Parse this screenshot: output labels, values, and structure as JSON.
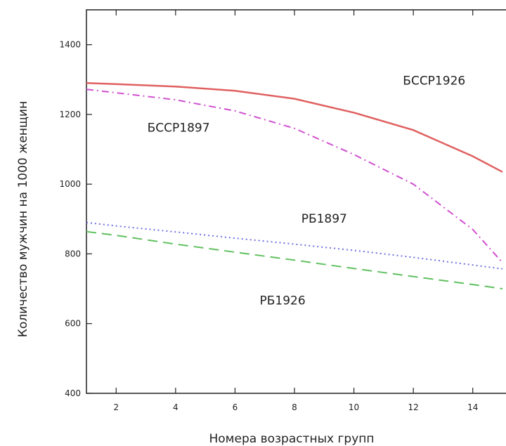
{
  "chart_data": {
    "type": "line",
    "title": "",
    "xlabel": "Номера возрастных групп",
    "ylabel": "Количество мужчин на 1000 женщин",
    "xlim": [
      1,
      15
    ],
    "ylim": [
      400,
      1500
    ],
    "xticks": [
      2,
      4,
      6,
      8,
      10,
      12,
      14
    ],
    "yticks": [
      400,
      600,
      800,
      1000,
      1200,
      1400
    ],
    "grid": false,
    "legend": "none",
    "series": [
      {
        "name": "БССР1926",
        "color": "#e06060",
        "dash": "solid",
        "x": [
          1,
          2,
          4,
          6,
          8,
          10,
          12,
          14,
          15
        ],
        "y": [
          1290,
          1287,
          1280,
          1268,
          1245,
          1205,
          1155,
          1080,
          1035
        ],
        "label_x": 12.7,
        "label_y": 1285
      },
      {
        "name": "БССР1897",
        "color": "#d050d0",
        "dash": "dashdot",
        "x": [
          1,
          2,
          4,
          6,
          8,
          10,
          12,
          14,
          15
        ],
        "y": [
          1272,
          1262,
          1242,
          1210,
          1160,
          1085,
          1000,
          870,
          775
        ],
        "label_x": 4.1,
        "label_y": 1150
      },
      {
        "name": "РБ1897",
        "color": "#7070e0",
        "dash": "dotted",
        "x": [
          1,
          2,
          4,
          6,
          8,
          10,
          12,
          14,
          15
        ],
        "y": [
          890,
          880,
          863,
          845,
          828,
          810,
          790,
          768,
          757
        ],
        "label_x": 9.0,
        "label_y": 890
      },
      {
        "name": "РБ1926",
        "color": "#60c060",
        "dash": "dashed",
        "x": [
          1,
          2,
          4,
          6,
          8,
          10,
          12,
          14,
          15
        ],
        "y": [
          864,
          853,
          828,
          805,
          782,
          758,
          735,
          712,
          700
        ],
        "label_x": 7.6,
        "label_y": 655
      }
    ]
  }
}
